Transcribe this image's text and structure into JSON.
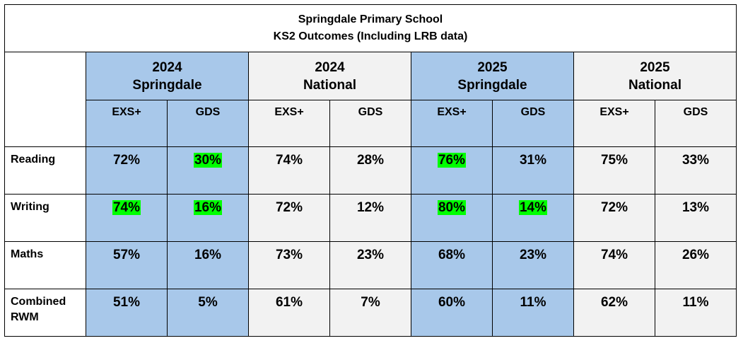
{
  "title": {
    "line1": "Springdale Primary School",
    "line2": "KS2 Outcomes (Including LRB data)"
  },
  "groups": [
    {
      "line1": "2024",
      "line2": "Springdale"
    },
    {
      "line1": "2024",
      "line2": "National"
    },
    {
      "line1": "2025",
      "line2": "Springdale"
    },
    {
      "line1": "2025",
      "line2": "National"
    }
  ],
  "sub_headers": [
    "EXS+",
    "GDS",
    "EXS+",
    "GDS",
    "EXS+",
    "GDS",
    "EXS+",
    "GDS"
  ],
  "rows": [
    {
      "label_line1": "Reading",
      "label_line2": "",
      "values": [
        "72%",
        "30%",
        "74%",
        "28%",
        "76%",
        "31%",
        "75%",
        "33%"
      ]
    },
    {
      "label_line1": "Writing",
      "label_line2": "",
      "values": [
        "74%",
        "16%",
        "72%",
        "12%",
        "80%",
        "14%",
        "72%",
        "13%"
      ]
    },
    {
      "label_line1": "Maths",
      "label_line2": "",
      "values": [
        "57%",
        "16%",
        "73%",
        "23%",
        "68%",
        "23%",
        "74%",
        "26%"
      ]
    },
    {
      "label_line1": "Combined",
      "label_line2": "RWM",
      "values": [
        "51%",
        "5%",
        "61%",
        "7%",
        "60%",
        "11%",
        "62%",
        "11%"
      ]
    }
  ],
  "colors": {
    "springdale_fill": "#a8c8ea",
    "national_fill": "#f2f2f2",
    "highlight": "#00ff00"
  },
  "highlighted_cells": [
    {
      "row": "Reading",
      "column": "2024 Springdale GDS"
    },
    {
      "row": "Reading",
      "column": "2025 Springdale EXS+"
    },
    {
      "row": "Writing",
      "column": "2024 Springdale EXS+"
    },
    {
      "row": "Writing",
      "column": "2024 Springdale GDS"
    },
    {
      "row": "Writing",
      "column": "2025 Springdale EXS+"
    },
    {
      "row": "Writing",
      "column": "2025 Springdale GDS"
    }
  ]
}
